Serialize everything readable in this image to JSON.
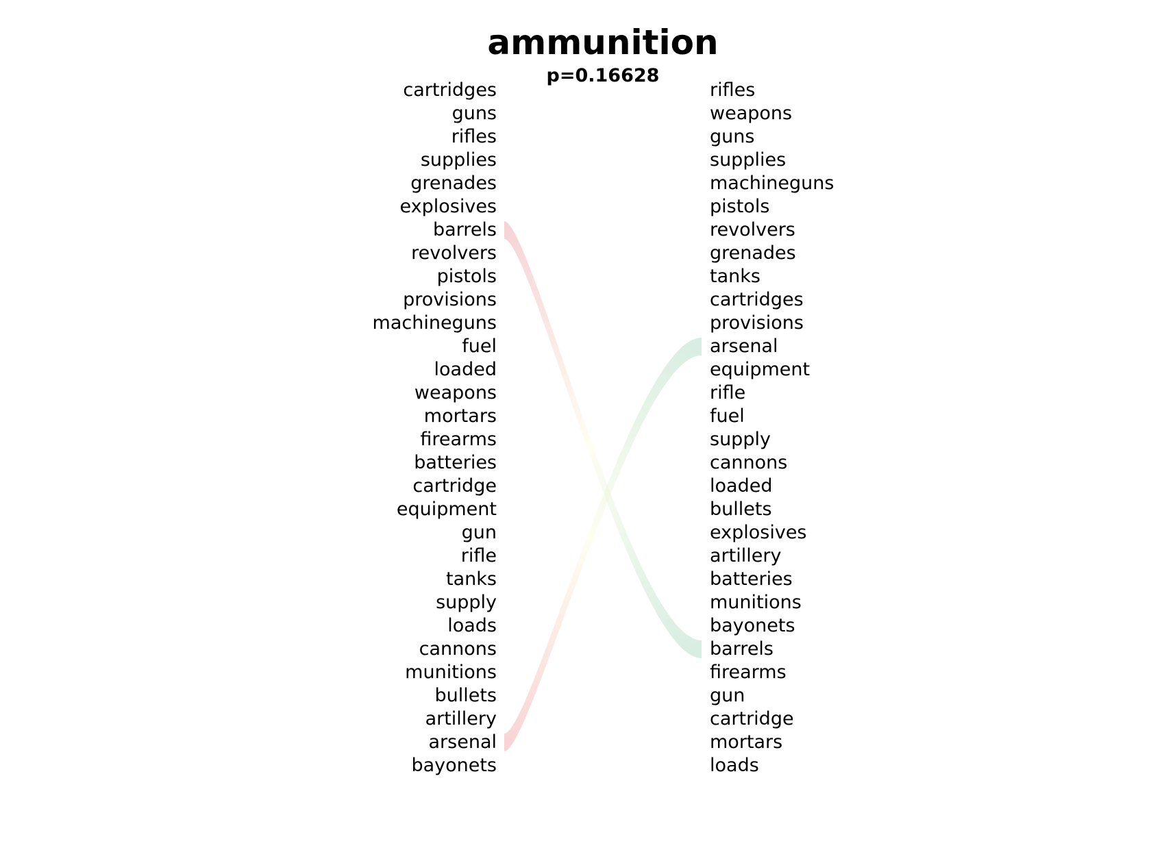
{
  "title": "ammunition",
  "subtitle": "p=0.16628",
  "left_words": [
    "cartridges",
    "guns",
    "rifles",
    "supplies",
    "grenades",
    "explosives",
    "barrels",
    "revolvers",
    "pistols",
    "provisions",
    "machineguns",
    "fuel",
    "loaded",
    "weapons",
    "mortars",
    "firearms",
    "batteries",
    "cartridge",
    "equipment",
    "gun",
    "rifle",
    "tanks",
    "supply",
    "loads",
    "cannons",
    "munitions",
    "bullets",
    "artillery",
    "arsenal",
    "bayonets"
  ],
  "right_words": [
    "rifles",
    "weapons",
    "guns",
    "supplies",
    "machineguns",
    "pistols",
    "revolvers",
    "grenades",
    "tanks",
    "cartridges",
    "provisions",
    "arsenal",
    "equipment",
    "rifle",
    "fuel",
    "supply",
    "cannons",
    "loaded",
    "bullets",
    "explosives",
    "artillery",
    "batteries",
    "munitions",
    "bayonets",
    "barrels",
    "firearms",
    "gun",
    "cartridge",
    "mortars",
    "loads"
  ],
  "links": [
    {
      "word": "barrels",
      "from_rank": 7,
      "to_rank": 25,
      "color_start": "#e8a0a8",
      "color_mid": "#fdfde0",
      "color_end": "#a8d8c0"
    },
    {
      "word": "arsenal",
      "from_rank": 29,
      "to_rank": 12,
      "color_start": "#f0a0a0",
      "color_mid": "#fdfde0",
      "color_end": "#a8d8c0"
    }
  ]
}
